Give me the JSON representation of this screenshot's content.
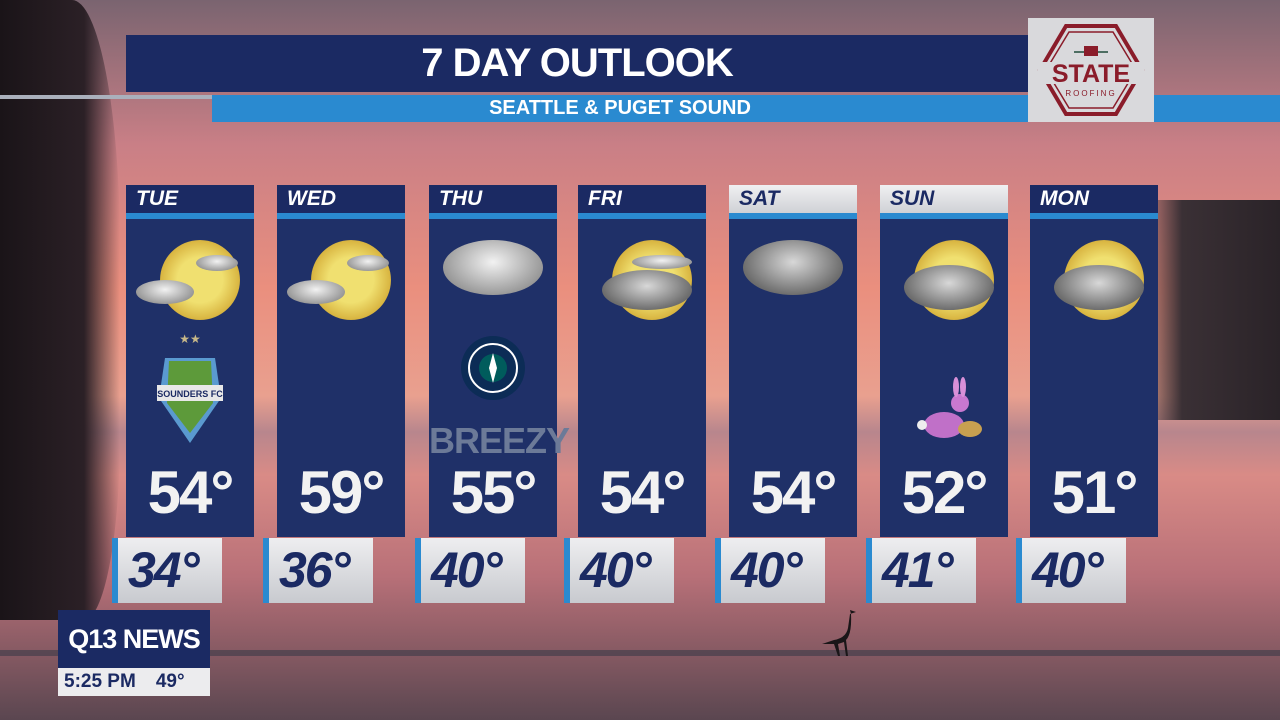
{
  "title": "7 DAY OUTLOOK",
  "subtitle": "SEATTLE & PUGET SOUND",
  "sponsor": {
    "name": "STATE",
    "tagline": "ROOFING",
    "color": "#8a1c2a"
  },
  "days": [
    {
      "day": "TUE",
      "high": "54°",
      "low": "34°",
      "icon": "partly-sunny",
      "extra": "sounders-fc-logo",
      "extra_text": "SOUNDERS FC"
    },
    {
      "day": "WED",
      "high": "59°",
      "low": "36°",
      "icon": "partly-sunny"
    },
    {
      "day": "THU",
      "high": "55°",
      "low": "40°",
      "icon": "rain-cloud",
      "extra": "seattle-mariners-logo",
      "extra_text": "BREEZY"
    },
    {
      "day": "FRI",
      "high": "54°",
      "low": "40°",
      "icon": "mostly-cloudy"
    },
    {
      "day": "SAT",
      "high": "54°",
      "low": "40°",
      "icon": "showers",
      "header_style": "light"
    },
    {
      "day": "SUN",
      "high": "52°",
      "low": "41°",
      "icon": "mostly-cloudy-showers",
      "header_style": "light",
      "extra": "easter-bunny"
    },
    {
      "day": "MON",
      "high": "51°",
      "low": "40°",
      "icon": "mostly-cloudy-showers"
    }
  ],
  "station": {
    "brand": "Q13 NEWS",
    "time": "5:25 PM",
    "current_temp": "49°"
  },
  "colors": {
    "navy": "#1b2a63",
    "panel": "#1f3068",
    "accent_blue": "#2a8ad0"
  }
}
